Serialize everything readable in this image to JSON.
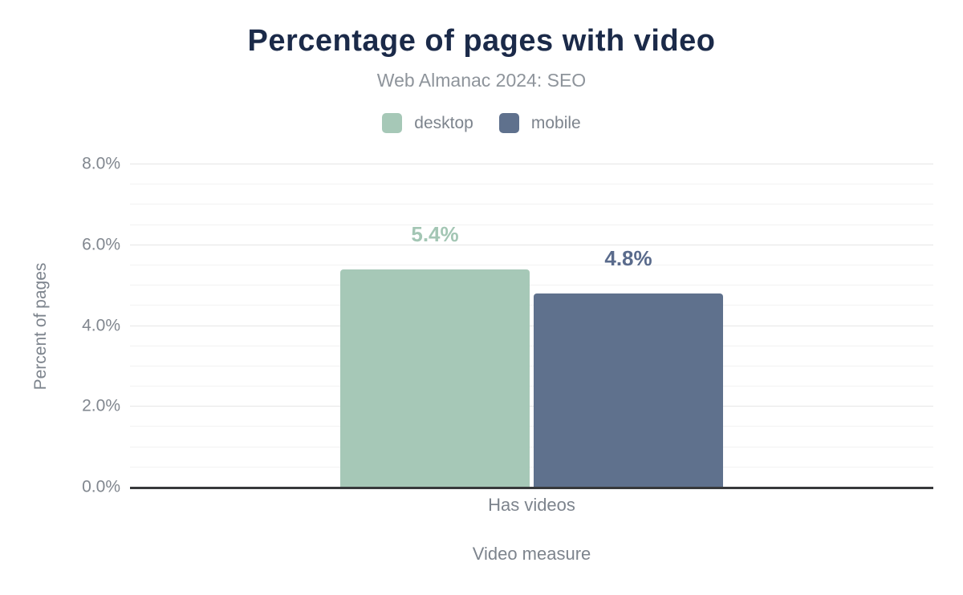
{
  "chart_data": {
    "type": "bar",
    "title": "Percentage of pages with video",
    "subtitle": "Web Almanac 2024: SEO",
    "categories": [
      "Has videos"
    ],
    "series": [
      {
        "name": "desktop",
        "values": [
          5.4
        ],
        "data_labels": [
          "5.4%"
        ],
        "color": "#a6c8b7",
        "label_color": "#a3c6b4"
      },
      {
        "name": "mobile",
        "values": [
          4.8
        ],
        "data_labels": [
          "4.8%"
        ],
        "color": "#5f718d",
        "label_color": "#5a6b8c"
      }
    ],
    "xlabel": "Video measure",
    "ylabel": "Percent of pages",
    "ylim": [
      0,
      8
    ],
    "y_major_step": 2,
    "y_minor_step": 0.5,
    "y_tick_labels": [
      "0.0%",
      "2.0%",
      "4.0%",
      "6.0%",
      "8.0%"
    ],
    "grid": "on",
    "legend_position": "top"
  },
  "colors": {
    "title": "#1b2a49",
    "subtitle": "#8e949b",
    "axis_text": "#81878f",
    "axis_label": "#7d848d",
    "axis_line": "#37393b",
    "grid_major": "#e6e6e6",
    "grid_minor": "#f2f2f2",
    "background": "#ffffff",
    "desktop": "#a6c8b7",
    "mobile": "#5f718d"
  }
}
